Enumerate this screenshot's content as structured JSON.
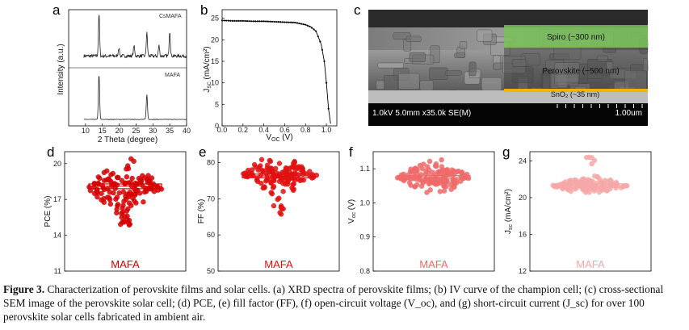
{
  "panels": {
    "a": {
      "letter": "a",
      "top_label": "CsMAFA",
      "bottom_label": "MAFA",
      "ylabel": "Intensity (a.u.)",
      "xlabel": "2 Theta (degree)",
      "xticks": [
        "10",
        "15",
        "20",
        "25",
        "30",
        "35",
        "40"
      ]
    },
    "b": {
      "letter": "b",
      "ylabel": "J_sc (mA/cm²)",
      "xlabel": "V_oc (V)",
      "xticks": [
        "0.0",
        "0.2",
        "0.4",
        "0.6",
        "0.8",
        "1.0"
      ],
      "yticks": [
        "0",
        "5",
        "10",
        "15",
        "20",
        "25"
      ]
    },
    "c": {
      "letter": "c",
      "layer_spiro": "Spiro (~300 nm)",
      "layer_perovskite": "Perovskite (~500 nm)",
      "layer_sno2": "SnO₂ (~35 nm)",
      "info": "1.0kV 5.0mm x35.0k SE(M)",
      "scale": "1.00um"
    },
    "d": {
      "letter": "d",
      "ylabel": "PCE (%)",
      "yticks": [
        "11",
        "14",
        "17",
        "20"
      ],
      "group": "MAFA"
    },
    "e": {
      "letter": "e",
      "ylabel": "FF (%)",
      "yticks": [
        "50",
        "60",
        "70",
        "80"
      ],
      "group": "MAFA"
    },
    "f": {
      "letter": "f",
      "ylabel": "V_oc (V)",
      "yticks": [
        "0.8",
        "0.9",
        "1.0",
        "1.1"
      ],
      "group": "MAFA"
    },
    "g": {
      "letter": "g",
      "ylabel": "J_sc (mA/cm²)",
      "yticks": [
        "12",
        "16",
        "20",
        "24"
      ],
      "group": "MAFA"
    }
  },
  "colors": {
    "d": "#d40000",
    "e": "#e01010",
    "f": "#f06a6a",
    "g": "#f6a8a8",
    "green": "#79c25a",
    "gold": "#f0b400"
  },
  "caption": {
    "label": "Figure 3.",
    "text": "Characterization of perovskite films and solar cells. (a) XRD spectra of perovskite films; (b) IV curve of the champion cell; (c) cross-sectional SEM image of the perovskite solar cell; (d) PCE, (e) fill factor (FF), (f) open-circuit voltage (V_oc), and (g) short-circuit current (J_sc) for over 100 perovskite solar cells fabricated in ambient air."
  },
  "chart_data": [
    {
      "type": "line",
      "panel": "a",
      "xlabel": "2 Theta (degree)",
      "ylabel": "Intensity (a.u.)",
      "xlim": [
        5,
        40
      ],
      "series": [
        {
          "name": "CsMAFA",
          "peaks": [
            [
              14.0,
              1.0
            ],
            [
              28.2,
              0.55
            ],
            [
              35.0,
              0.6
            ],
            [
              19.9,
              0.2
            ],
            [
              24.4,
              0.25
            ],
            [
              31.8,
              0.25
            ]
          ]
        },
        {
          "name": "MAFA",
          "peaks": [
            [
              14.0,
              1.0
            ],
            [
              28.2,
              0.55
            ]
          ]
        }
      ]
    },
    {
      "type": "line",
      "panel": "b",
      "xlabel": "V_oc (V)",
      "ylabel": "J_sc (mA/cm²)",
      "xlim": [
        0,
        1.1
      ],
      "ylim": [
        0,
        27
      ],
      "x": [
        0.0,
        0.1,
        0.2,
        0.3,
        0.4,
        0.5,
        0.6,
        0.7,
        0.8,
        0.85,
        0.9,
        0.95,
        0.98,
        1.0,
        1.02,
        1.04
      ],
      "y": [
        24.5,
        24.4,
        24.4,
        24.3,
        24.3,
        24.2,
        24.1,
        24.0,
        23.5,
        23.0,
        22.0,
        19.0,
        15.0,
        10.0,
        4.0,
        0.5
      ]
    },
    {
      "type": "scatter",
      "panel": "d",
      "ylabel": "PCE (%)",
      "ylim": [
        11,
        21
      ],
      "center": 18.0,
      "spread": 1.3,
      "box": [
        17.9,
        18.3
      ],
      "count": 140
    },
    {
      "type": "scatter",
      "panel": "e",
      "ylabel": "FF (%)",
      "ylim": [
        50,
        83
      ],
      "center": 76.5,
      "spread": 3.5,
      "box": [
        75.8,
        76.8
      ],
      "count": 140
    },
    {
      "type": "scatter",
      "panel": "f",
      "ylabel": "V_oc (V)",
      "ylim": [
        0.8,
        1.15
      ],
      "center": 1.075,
      "spread": 0.03,
      "box": [
        1.07,
        1.08
      ],
      "count": 140
    },
    {
      "type": "scatter",
      "panel": "g",
      "ylabel": "J_sc (mA/cm²)",
      "ylim": [
        12,
        25
      ],
      "center": 21.3,
      "spread": 0.6,
      "box": [
        21.1,
        21.5
      ],
      "count": 140
    }
  ]
}
